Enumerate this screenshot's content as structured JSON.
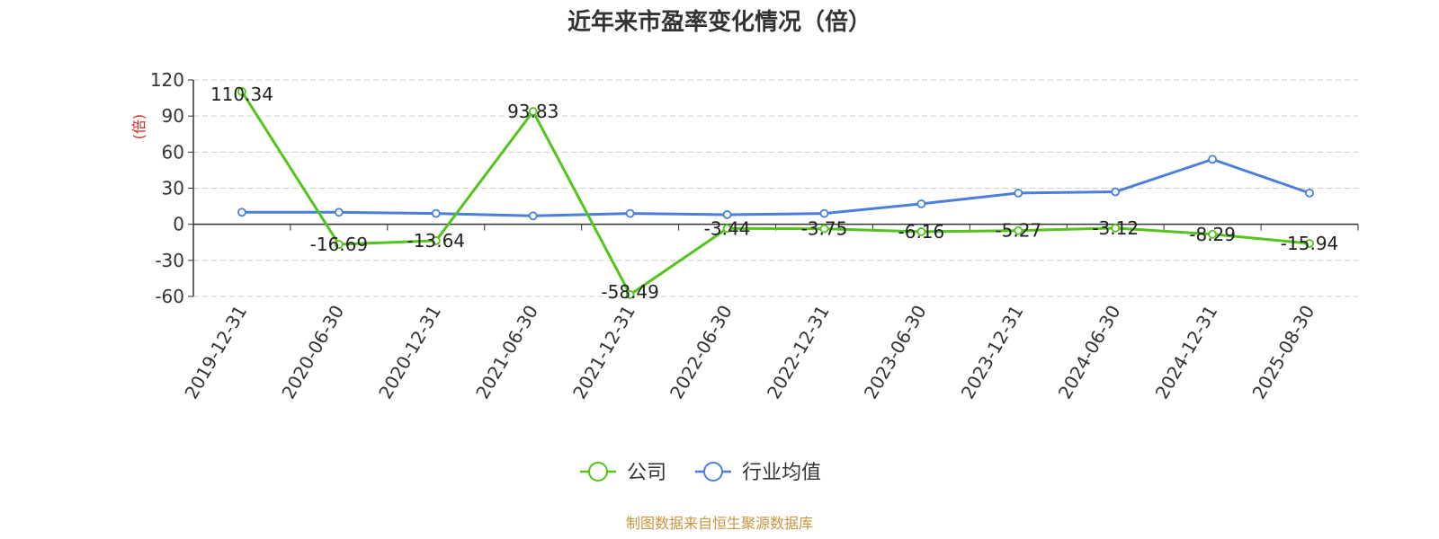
{
  "chart_data": {
    "type": "line",
    "title": "近年来市盈率变化情况（倍）",
    "ylabel": "(倍)",
    "xlabel": "",
    "categories": [
      "2019-12-31",
      "2020-06-30",
      "2020-12-31",
      "2021-06-30",
      "2021-12-31",
      "2022-06-30",
      "2022-12-31",
      "2023-06-30",
      "2023-12-31",
      "2024-06-30",
      "2024-12-31",
      "2025-08-30"
    ],
    "yticks": [
      120,
      90,
      60,
      30,
      0,
      -30,
      -60
    ],
    "ylim": [
      -60,
      120
    ],
    "grid": true,
    "legend_position": "bottom",
    "series": [
      {
        "name": "公司",
        "color": "#52c41a",
        "values": [
          110.34,
          -16.69,
          -13.64,
          93.83,
          -58.49,
          -3.44,
          -3.75,
          -6.16,
          -5.27,
          -3.12,
          -8.29,
          -15.94
        ],
        "labels": [
          "110.34",
          "-16.69",
          "-13.64",
          "93.83",
          "-58.49",
          "-3.44",
          "-3.75",
          "-6.16",
          "-5.27",
          "-3.12",
          "-8.29",
          "-15.94"
        ]
      },
      {
        "name": "行业均值",
        "color": "#4a7fdc",
        "values": [
          10,
          10,
          9,
          7,
          9,
          8,
          9,
          17,
          26,
          27,
          54,
          26
        ]
      }
    ],
    "source": "制图数据来自恒生聚源数据库",
    "colors": {
      "axis_label": "#e02020",
      "source_text": "#c8963c",
      "grid": "#cccccc",
      "axis": "#333333"
    }
  }
}
